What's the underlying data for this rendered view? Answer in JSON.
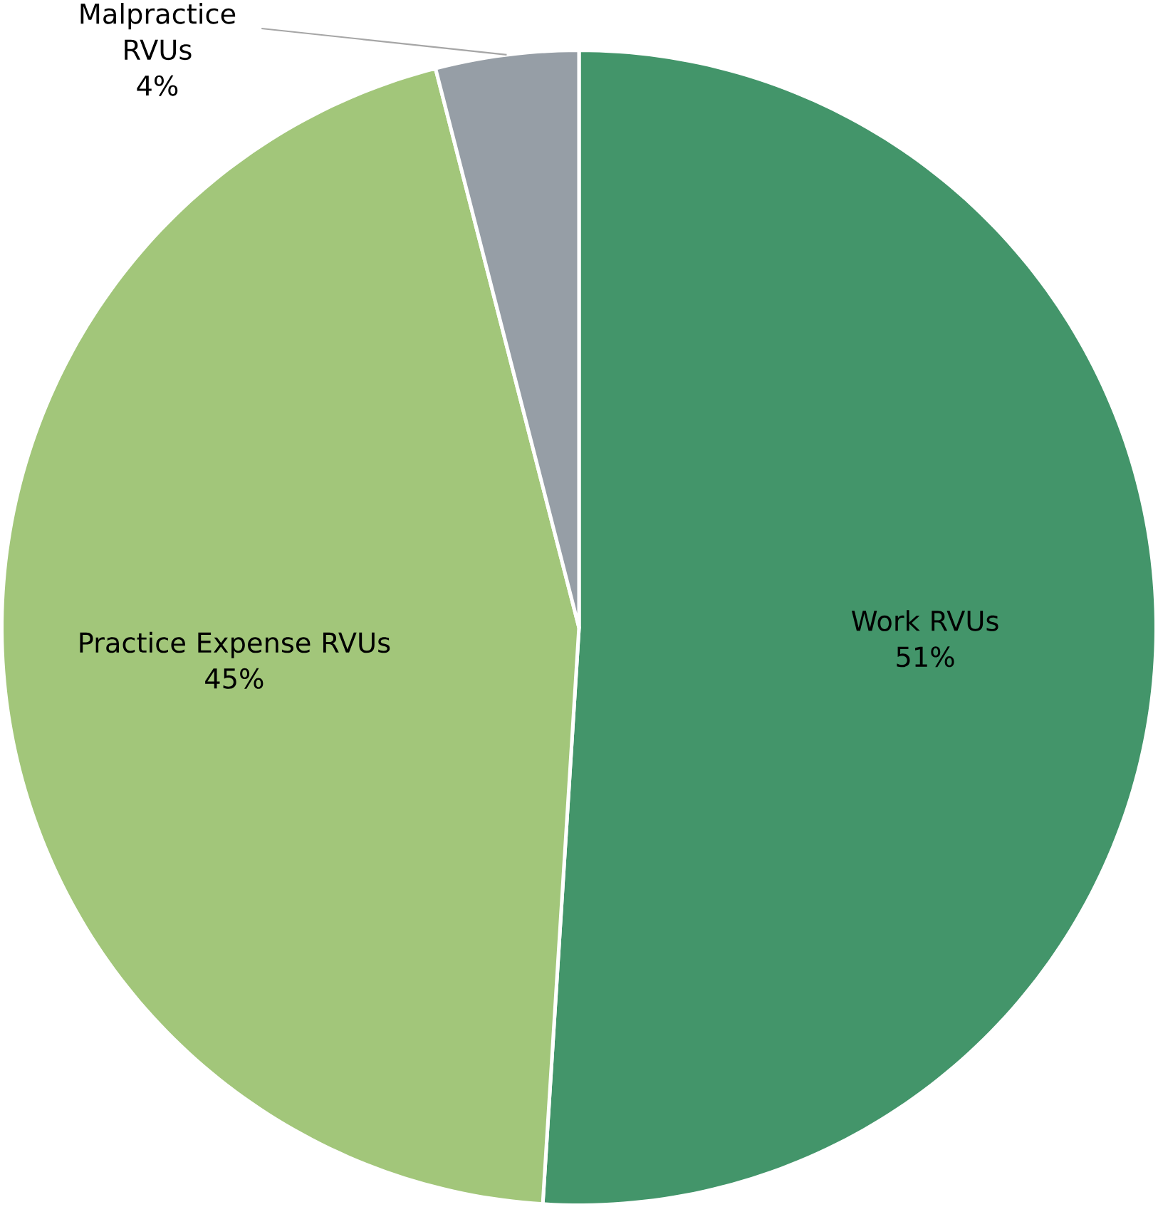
{
  "chart_data": {
    "type": "pie",
    "categories": [
      "Work RVUs",
      "Practice Expense RVUs",
      "Malpractice RVUs"
    ],
    "values": [
      51,
      45,
      4
    ],
    "value_labels": [
      "51%",
      "45%",
      "4%"
    ],
    "colors": [
      "#43956a",
      "#a2c67a",
      "#969ea6"
    ]
  }
}
